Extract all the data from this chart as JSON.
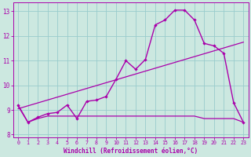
{
  "xlabel": "Windchill (Refroidissement éolien,°C)",
  "bg_color": "#cce8e0",
  "grid_color": "#99cccc",
  "line_color": "#aa00aa",
  "xlim": [
    -0.5,
    23.5
  ],
  "ylim": [
    7.9,
    13.35
  ],
  "xticks": [
    0,
    1,
    2,
    3,
    4,
    5,
    6,
    7,
    8,
    9,
    10,
    11,
    12,
    13,
    14,
    15,
    16,
    17,
    18,
    19,
    20,
    21,
    22,
    23
  ],
  "yticks": [
    8,
    9,
    10,
    11,
    12,
    13
  ],
  "curve1_x": [
    0,
    1,
    2,
    3,
    4,
    5,
    6,
    7,
    8,
    9,
    10,
    11,
    12,
    13,
    14,
    15,
    16,
    17,
    18,
    19,
    20,
    21,
    22,
    23
  ],
  "curve1_y": [
    9.2,
    8.5,
    8.7,
    8.85,
    8.9,
    9.2,
    8.65,
    9.35,
    9.4,
    9.55,
    10.25,
    11.0,
    10.65,
    11.05,
    12.45,
    12.65,
    13.05,
    13.05,
    12.65,
    11.7,
    11.6,
    11.3,
    9.3,
    8.5
  ],
  "curve2_x": [
    0,
    23
  ],
  "curve2_y": [
    9.05,
    11.75
  ],
  "curve3_x": [
    0,
    1,
    2,
    3,
    4,
    5,
    6,
    7,
    8,
    9,
    10,
    11,
    12,
    13,
    14,
    15,
    16,
    17,
    18,
    19,
    20,
    21,
    22,
    23
  ],
  "curve3_y": [
    9.15,
    8.5,
    8.65,
    8.75,
    8.75,
    8.75,
    8.75,
    8.75,
    8.75,
    8.75,
    8.75,
    8.75,
    8.75,
    8.75,
    8.75,
    8.75,
    8.75,
    8.75,
    8.75,
    8.65,
    8.65,
    8.65,
    8.65,
    8.5
  ]
}
